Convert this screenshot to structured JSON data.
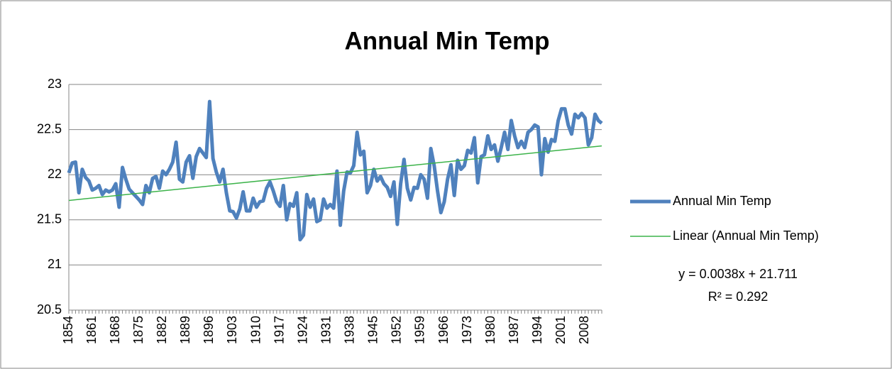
{
  "chart_data": {
    "type": "line",
    "title": "Annual Min Temp",
    "categories": [
      "1854",
      null,
      null,
      null,
      null,
      null,
      null,
      "1861",
      null,
      null,
      null,
      null,
      null,
      null,
      "1868",
      null,
      null,
      null,
      null,
      null,
      null,
      "1875",
      null,
      null,
      null,
      null,
      null,
      null,
      "1882",
      null,
      null,
      null,
      null,
      null,
      null,
      "1889",
      null,
      null,
      null,
      null,
      null,
      null,
      "1896",
      null,
      null,
      null,
      null,
      null,
      null,
      "1903",
      null,
      null,
      null,
      null,
      null,
      null,
      "1910",
      null,
      null,
      null,
      null,
      null,
      null,
      "1917",
      null,
      null,
      null,
      null,
      null,
      null,
      "1924",
      null,
      null,
      null,
      null,
      null,
      null,
      "1931",
      null,
      null,
      null,
      null,
      null,
      null,
      "1938",
      null,
      null,
      null,
      null,
      null,
      null,
      "1945",
      null,
      null,
      null,
      null,
      null,
      null,
      "1952",
      null,
      null,
      null,
      null,
      null,
      null,
      "1959",
      null,
      null,
      null,
      null,
      null,
      null,
      "1966",
      null,
      null,
      null,
      null,
      null,
      null,
      "1973",
      null,
      null,
      null,
      null,
      null,
      null,
      "1980",
      null,
      null,
      null,
      null,
      null,
      null,
      "1987",
      null,
      null,
      null,
      null,
      null,
      null,
      "1994",
      null,
      null,
      null,
      null,
      null,
      null,
      "2001",
      null,
      null,
      null,
      null,
      null,
      null,
      "2008",
      null,
      null,
      null,
      null,
      null
    ],
    "series": [
      {
        "name": "Annual Min Temp",
        "color": "#4f81bd",
        "values": [
          22.02,
          22.13,
          22.14,
          21.8,
          22.06,
          21.97,
          21.93,
          21.83,
          21.85,
          21.88,
          21.78,
          21.83,
          21.81,
          21.83,
          21.9,
          21.64,
          22.08,
          21.95,
          21.84,
          21.8,
          21.76,
          21.72,
          21.67,
          21.88,
          21.8,
          21.96,
          21.98,
          21.85,
          22.04,
          22.0,
          22.06,
          22.14,
          22.36,
          21.95,
          21.92,
          22.14,
          22.21,
          21.96,
          22.2,
          22.29,
          22.24,
          22.19,
          22.81,
          22.18,
          22.03,
          21.92,
          22.06,
          21.8,
          21.6,
          21.59,
          21.52,
          21.62,
          21.81,
          21.6,
          21.6,
          21.74,
          21.64,
          21.7,
          21.71,
          21.85,
          21.92,
          21.82,
          21.7,
          21.65,
          21.88,
          21.5,
          21.68,
          21.65,
          21.8,
          21.28,
          21.33,
          21.78,
          21.64,
          21.73,
          21.48,
          21.5,
          21.73,
          21.63,
          21.67,
          21.63,
          22.04,
          21.44,
          21.82,
          22.03,
          22.02,
          22.1,
          22.47,
          22.22,
          22.26,
          21.8,
          21.88,
          22.06,
          21.93,
          21.98,
          21.9,
          21.86,
          21.76,
          21.92,
          21.45,
          21.9,
          22.17,
          21.85,
          21.72,
          21.86,
          21.85,
          22.0,
          21.95,
          21.74,
          22.29,
          22.1,
          21.82,
          21.58,
          21.7,
          21.95,
          22.11,
          21.77,
          22.16,
          22.06,
          22.1,
          22.27,
          22.24,
          22.41,
          21.91,
          22.2,
          22.22,
          22.43,
          22.28,
          22.33,
          22.15,
          22.3,
          22.47,
          22.28,
          22.6,
          22.43,
          22.3,
          22.37,
          22.3,
          22.47,
          22.5,
          22.55,
          22.53,
          22.0,
          22.4,
          22.25,
          22.39,
          22.37,
          22.6,
          22.73,
          22.73,
          22.55,
          22.45,
          22.67,
          22.63,
          22.68,
          22.63,
          22.33,
          22.41,
          22.67,
          22.6,
          22.57
        ]
      }
    ],
    "trendline": {
      "name": "Linear (Annual Min Temp)",
      "color": "#3cb34a",
      "slope": 0.0038,
      "intercept": 21.711,
      "equation": "y = 0.0038x + 21.711",
      "r2_label": "R² = 0.292"
    },
    "ylim": [
      20.5,
      23
    ],
    "yticks": [
      20.5,
      21,
      21.5,
      22,
      22.5,
      23
    ],
    "grid": true
  }
}
